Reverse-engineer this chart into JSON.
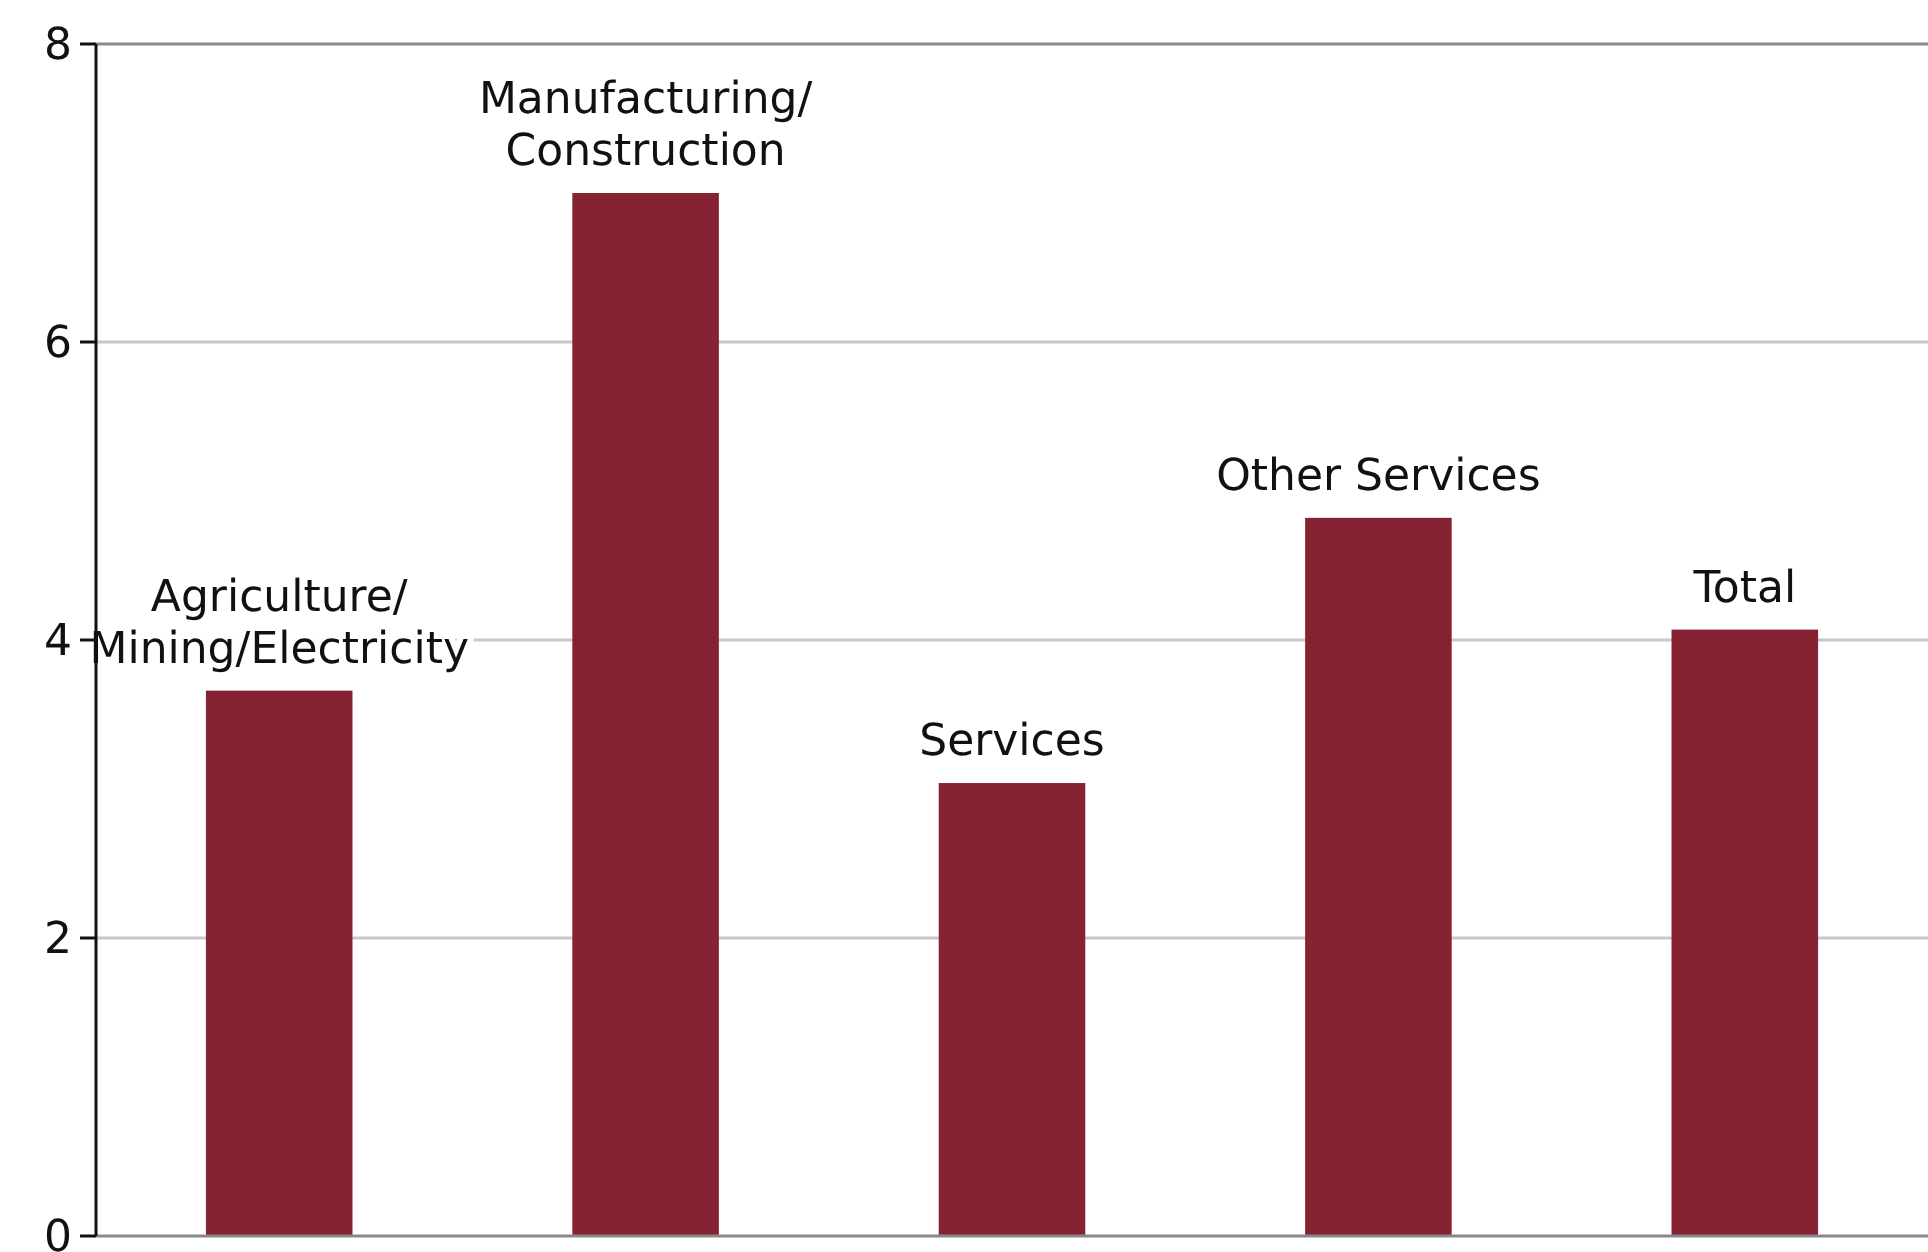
{
  "chart_data": {
    "type": "bar",
    "categories": [
      "Agriculture/\nMining/Electricity",
      "Manufacturing/\nConstruction",
      "Services",
      "Other Services",
      "Total"
    ],
    "values": [
      3.66,
      7.0,
      3.04,
      4.82,
      4.07
    ],
    "color": "#862333",
    "ylim": [
      0,
      8
    ],
    "yticks": [
      0,
      2,
      4,
      6,
      8
    ],
    "grid": "y"
  }
}
